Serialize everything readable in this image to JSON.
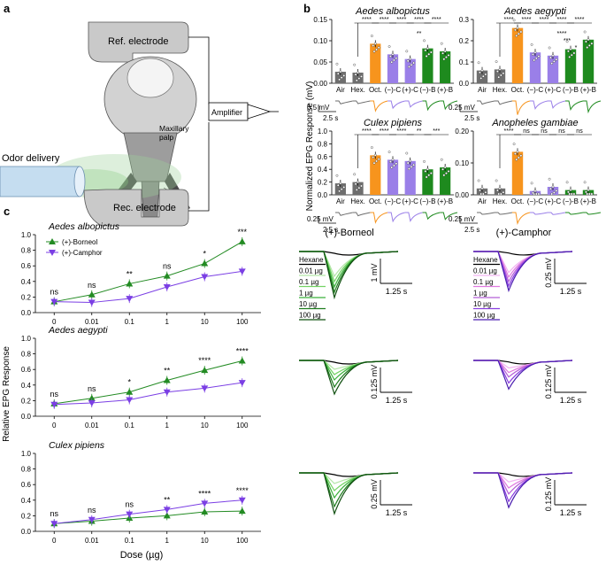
{
  "panel_labels": {
    "a": "a",
    "b": "b",
    "c": "c"
  },
  "colors": {
    "black": "#000000",
    "gray": "#6e6e6e",
    "orange": "#f7941d",
    "purple": "#9a7fe8",
    "green": "#1e8a1e",
    "borneol_line": "#238b23",
    "camphor_line": "#7b3fe4",
    "pink": "#e06be0",
    "lightgreen": "#7bd36a",
    "head_gray": "#b0b0b0",
    "probe_blue": "#b9d8ef"
  },
  "panel_a": {
    "ref_electrode": "Ref. electrode",
    "rec_electrode": "Rec. electrode",
    "odor_delivery": "Odor delivery",
    "maxillary_palp": "Maxillary\npalp",
    "amplifier": "Amplifier"
  },
  "panel_b": {
    "ylabel": "Normalized EPG Response (mV)",
    "categories": [
      "Air",
      "Hex.",
      "Oct.",
      "(−)-C",
      "(+)-C",
      "(−)-B",
      "(+)-B"
    ],
    "scale_time": "2.5 s",
    "charts": [
      {
        "title": "Aedes albopictus",
        "ylim": [
          0,
          0.15
        ],
        "yticks": [
          "0.00",
          "0.05",
          "0.10",
          "0.15"
        ],
        "values": [
          0.027,
          0.025,
          0.093,
          0.068,
          0.057,
          0.082,
          0.075
        ],
        "sig_top": [
          "****",
          "****",
          "****",
          "****",
          "****"
        ],
        "sig_extra": "**",
        "scale_v": "0.5 mV"
      },
      {
        "title": "Aedes aegypti",
        "ylim": [
          0,
          0.3
        ],
        "yticks": [
          "0.0",
          "0.1",
          "0.2",
          "0.3"
        ],
        "values": [
          0.06,
          0.065,
          0.26,
          0.145,
          0.13,
          0.16,
          0.205
        ],
        "sig_top": [
          "****",
          "****",
          "****",
          "****",
          "****"
        ],
        "sig_extra": "****",
        "sig_extra2": "***",
        "sig_extra3": "*",
        "scale_v": "0.25 mV"
      },
      {
        "title": "Culex pipiens",
        "ylim": [
          0,
          1.0
        ],
        "yticks": [
          "0.0",
          "0.2",
          "0.4",
          "0.6",
          "0.8",
          "1.0"
        ],
        "values": [
          0.18,
          0.2,
          0.62,
          0.55,
          0.53,
          0.4,
          0.43
        ],
        "sig_top": [
          "****",
          "****",
          "****",
          "**",
          "***"
        ],
        "scale_v": "0.25 mV"
      },
      {
        "title": "Anopheles gambiae",
        "ylim": [
          0,
          0.2
        ],
        "yticks": [
          "0.00",
          "0.10",
          "0.20"
        ],
        "values": [
          0.02,
          0.02,
          0.135,
          0.012,
          0.025,
          0.015,
          0.015
        ],
        "sig_top": [
          "****",
          "ns",
          "ns",
          "ns",
          "ns"
        ],
        "scale_v": "0.25 mV"
      }
    ]
  },
  "chart_data": [
    {
      "type": "line",
      "title": "Aedes albopictus",
      "x": [
        "0",
        "0.01",
        "0.1",
        "1",
        "10",
        "100"
      ],
      "series": [
        {
          "name": "(+)-Borneol",
          "values": [
            0.14,
            0.23,
            0.37,
            0.47,
            0.63,
            0.91
          ]
        },
        {
          "name": "(+)-Camphor",
          "values": [
            0.14,
            0.13,
            0.18,
            0.33,
            0.46,
            0.53
          ]
        }
      ],
      "significance": [
        "ns",
        "ns",
        "**",
        "ns",
        "*",
        "***"
      ],
      "ylim": [
        0,
        1.0
      ],
      "yticks": [
        "0.0",
        "0.2",
        "0.4",
        "0.6",
        "0.8",
        "1.0"
      ]
    },
    {
      "type": "line",
      "title": "Aedes aegypti",
      "x": [
        "0",
        "0.01",
        "0.1",
        "1",
        "10",
        "100"
      ],
      "series": [
        {
          "name": "(+)-Borneol",
          "values": [
            0.16,
            0.23,
            0.31,
            0.46,
            0.59,
            0.71
          ]
        },
        {
          "name": "(+)-Camphor",
          "values": [
            0.15,
            0.17,
            0.21,
            0.31,
            0.36,
            0.43
          ]
        }
      ],
      "significance": [
        "ns",
        "ns",
        "*",
        "**",
        "****",
        "****"
      ],
      "ylim": [
        0,
        1.0
      ],
      "yticks": [
        "0.0",
        "0.2",
        "0.4",
        "0.6",
        "0.8",
        "1.0"
      ]
    },
    {
      "type": "line",
      "title": "Culex pipiens",
      "x": [
        "0",
        "0.01",
        "0.1",
        "1",
        "10",
        "100"
      ],
      "series": [
        {
          "name": "(+)-Borneol",
          "values": [
            0.1,
            0.13,
            0.17,
            0.2,
            0.25,
            0.26
          ]
        },
        {
          "name": "(+)-Camphor",
          "values": [
            0.1,
            0.15,
            0.22,
            0.28,
            0.36,
            0.4
          ]
        }
      ],
      "significance": [
        "ns",
        "ns",
        "ns",
        "**",
        "****",
        "****"
      ],
      "ylim": [
        0,
        1.0
      ],
      "yticks": [
        "0.0",
        "0.2",
        "0.4",
        "0.6",
        "0.8",
        "1.0"
      ]
    }
  ],
  "panel_c": {
    "ylabel": "Relative EPG Response",
    "xlabel": "Dose (µg)",
    "trace_title_borneol": "(+)-Borneol",
    "trace_title_camphor": "(+)-Camphor",
    "dose_legend": [
      "Hexane",
      "0.01 µg",
      "0.1 µg",
      "1 µg",
      "10 µg",
      "100 µg"
    ],
    "scales": [
      {
        "borneol_v": "1 mV",
        "borneol_t": "1.25 s",
        "camphor_v": "0.25 mV",
        "camphor_t": "1.25 s"
      },
      {
        "borneol_v": "0.125 mV",
        "borneol_t": "1.25 s",
        "camphor_v": "0.125 mV",
        "camphor_t": "1.25 s"
      },
      {
        "borneol_v": "0.25 mV",
        "borneol_t": "1.25 s",
        "camphor_v": "0.125 mV",
        "camphor_t": "1.25 s"
      }
    ]
  }
}
